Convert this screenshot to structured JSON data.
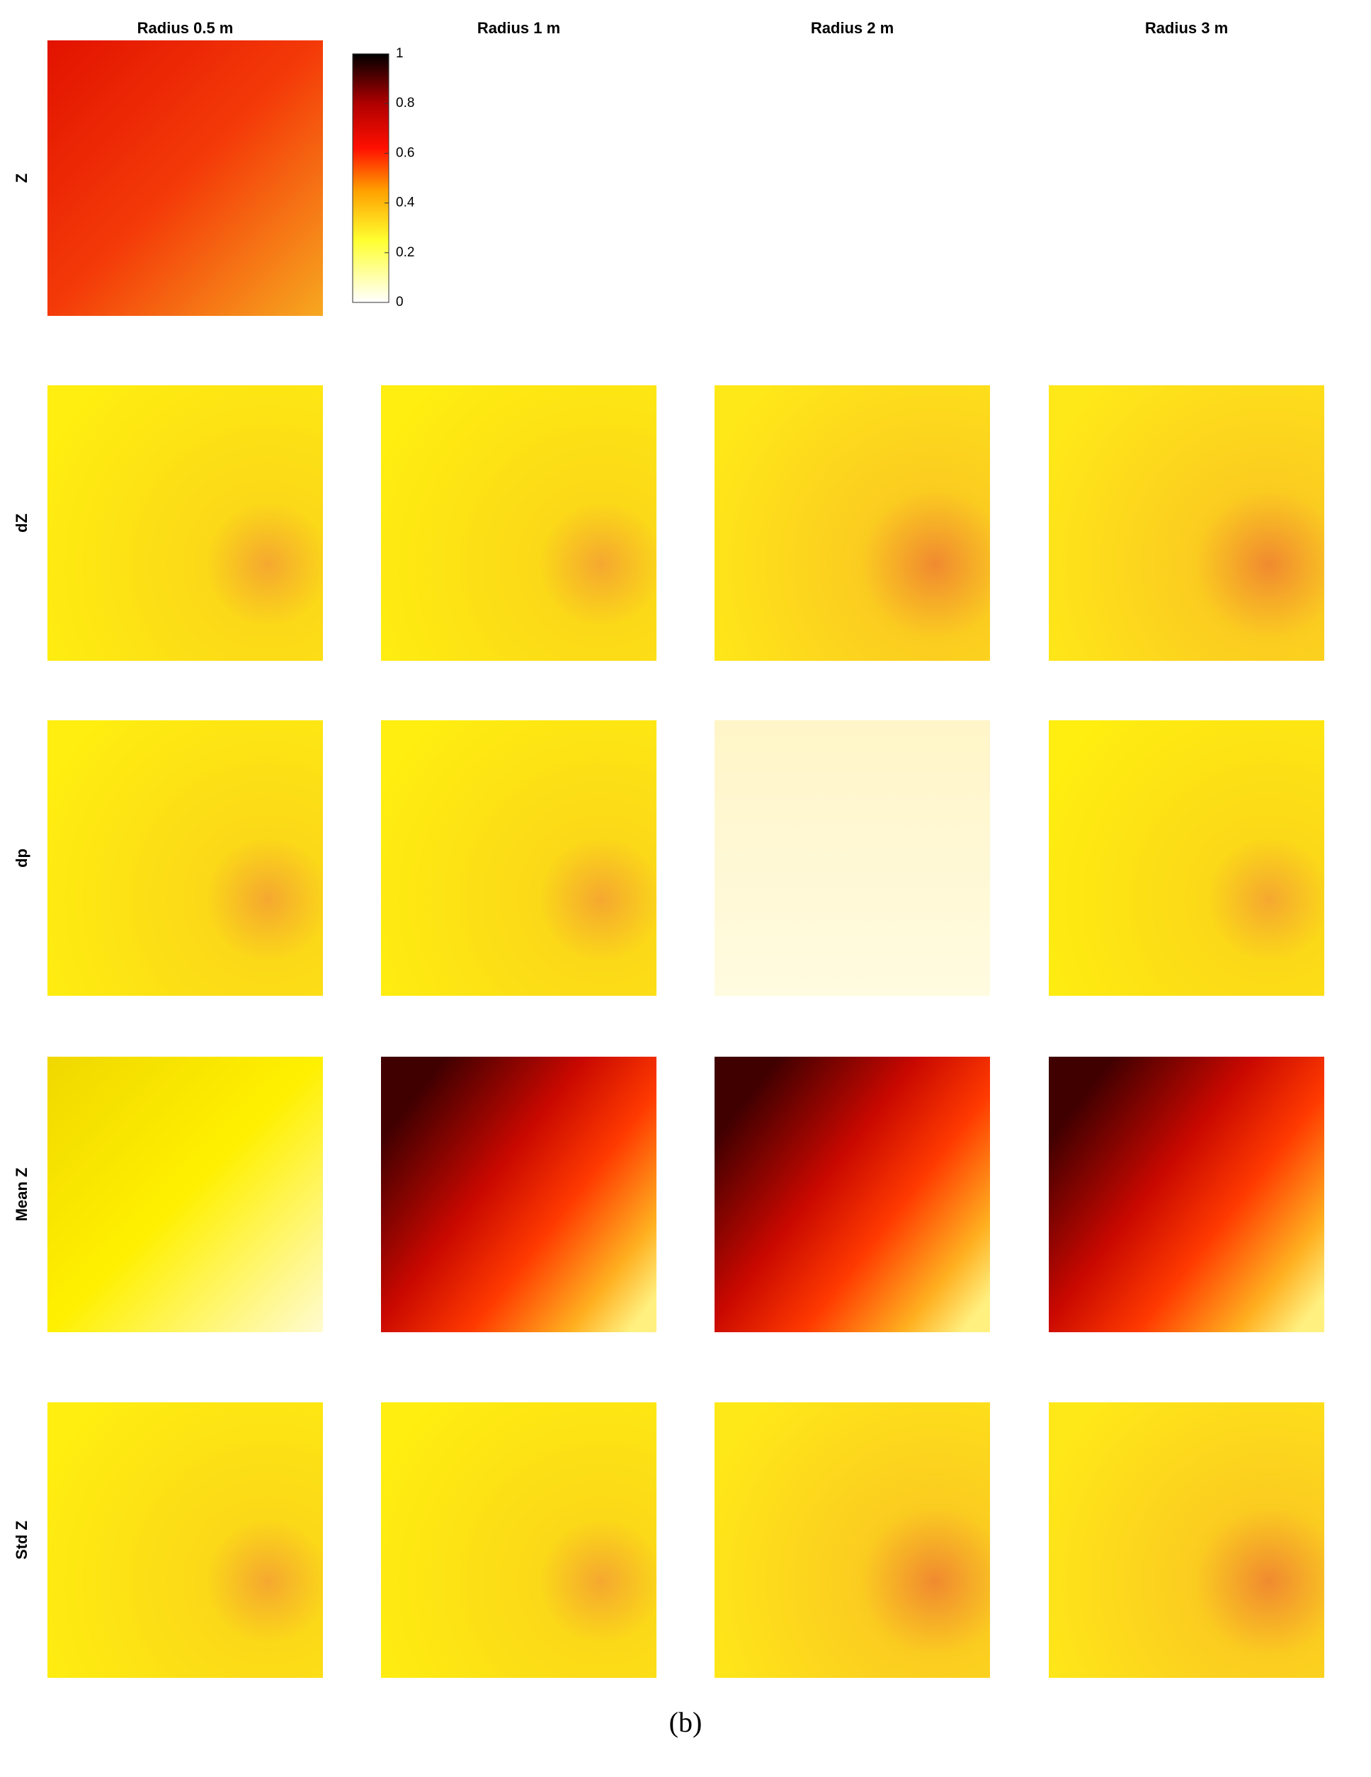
{
  "chart_data": {
    "type": "heatmap-grid",
    "columns": [
      "Radius 0.5 m",
      "Radius 1 m",
      "Radius 2 m",
      "Radius 3 m"
    ],
    "rows": [
      "Z",
      "dZ",
      "dp",
      "Mean Z",
      "Std Z"
    ],
    "colorbar": {
      "lim": [
        0,
        1
      ],
      "ticks": [
        0,
        0.2,
        0.4,
        0.6,
        0.8,
        1
      ]
    },
    "caption": "(b)"
  }
}
